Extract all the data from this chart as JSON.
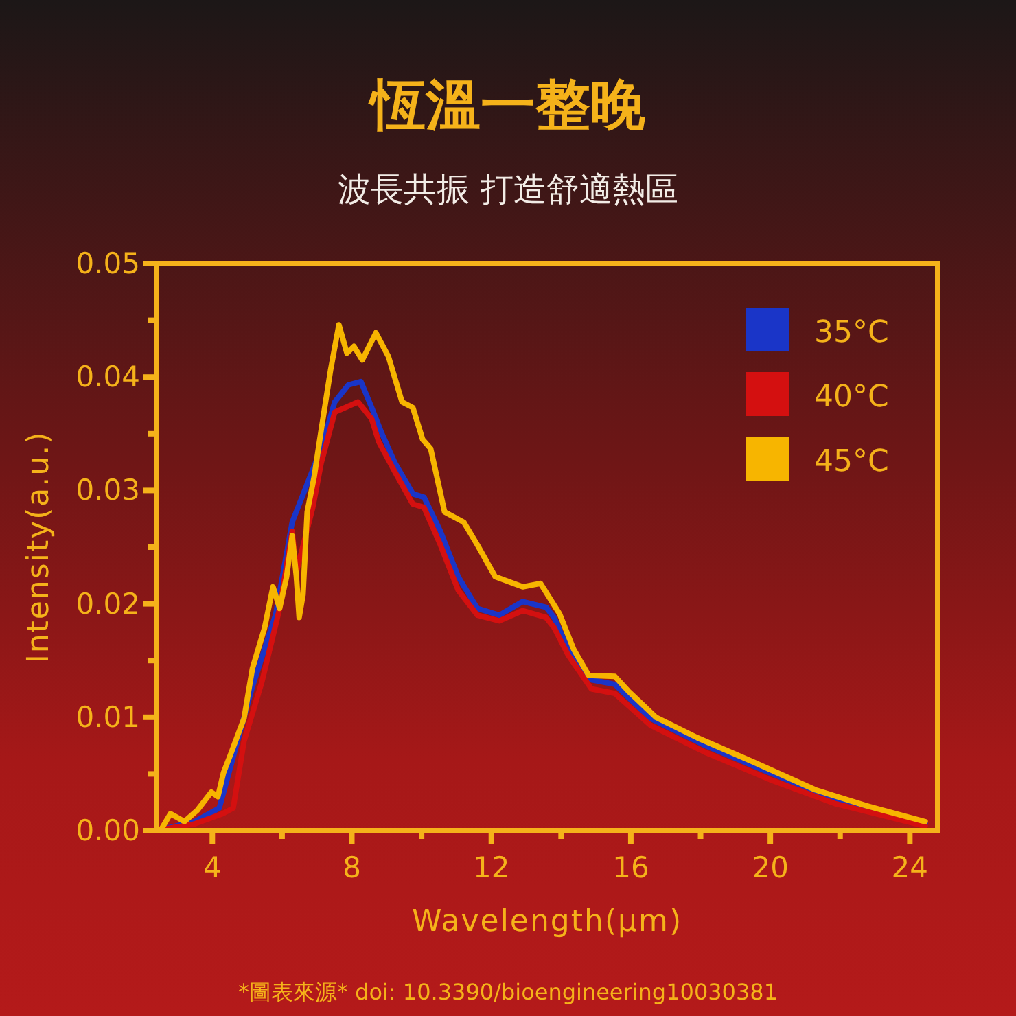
{
  "chart_data": {
    "type": "line",
    "title": "恆溫一整晚",
    "subtitle": "波長共振 打造舒適熱區",
    "xlabel": "Wavelength(µm)",
    "ylabel": "Intensity(a.u.)",
    "annotations": [
      "*圖表來源* doi: 10.3390/bioengineering10030381"
    ],
    "xlim": [
      2.4,
      24.8
    ],
    "ylim": [
      0,
      0.05
    ],
    "xticks": [
      4,
      {
        "value": 6,
        "label": null
      },
      8,
      {
        "value": 10,
        "label": null
      },
      12,
      {
        "value": 14,
        "label": null
      },
      16,
      {
        "value": 18,
        "label": null
      },
      20,
      {
        "value": 22,
        "label": null
      },
      24
    ],
    "yticks": [
      {
        "value": 0,
        "label": "0.00"
      },
      {
        "value": 0.005,
        "label": null
      },
      {
        "value": 0.01,
        "label": "0.01"
      },
      {
        "value": 0.015,
        "label": null
      },
      {
        "value": 0.02,
        "label": "0.02"
      },
      {
        "value": 0.025,
        "label": null
      },
      {
        "value": 0.03,
        "label": "0.03"
      },
      {
        "value": 0.035,
        "label": null
      },
      {
        "value": 0.04,
        "label": "0.04"
      },
      {
        "value": 0.045,
        "label": null
      },
      {
        "value": 0.05,
        "label": "0.05"
      }
    ],
    "legend": "top right",
    "series": [
      {
        "name": "35°C",
        "color": "#1a35c8",
        "x": [
          2.55,
          3.5,
          4.2,
          5.15,
          5.82,
          6.29,
          7.12,
          7.51,
          7.9,
          8.26,
          8.57,
          8.85,
          9.24,
          9.75,
          10.07,
          10.54,
          11.05,
          11.6,
          12.23,
          12.9,
          13.57,
          13.8,
          14.2,
          14.87,
          15.54,
          16.56,
          18.14,
          19.99,
          21.84,
          24.44
        ],
        "values": [
          0.0001,
          0.0008,
          0.002,
          0.0127,
          0.0191,
          0.0272,
          0.0337,
          0.0378,
          0.0393,
          0.0396,
          0.0373,
          0.0351,
          0.0324,
          0.0297,
          0.0294,
          0.0264,
          0.0224,
          0.0196,
          0.019,
          0.0202,
          0.0197,
          0.0188,
          0.016,
          0.0133,
          0.0129,
          0.0099,
          0.0075,
          0.0051,
          0.0028,
          0.0006
        ]
      },
      {
        "name": "40°C",
        "color": "#d41010",
        "x": [
          2.55,
          3.5,
          4.3,
          4.6,
          4.91,
          5.42,
          5.93,
          6.29,
          6.41,
          6.88,
          7.12,
          7.51,
          8.18,
          8.57,
          8.77,
          9.24,
          9.75,
          10.07,
          10.54,
          11.05,
          11.6,
          12.23,
          12.9,
          13.57,
          13.8,
          14.2,
          14.87,
          15.54,
          16.56,
          18.14,
          19.99,
          21.84,
          24.44
        ],
        "values": [
          0.0001,
          0.0006,
          0.0015,
          0.002,
          0.0079,
          0.0131,
          0.0196,
          0.0264,
          0.0228,
          0.0285,
          0.0324,
          0.0369,
          0.0378,
          0.0363,
          0.0343,
          0.0316,
          0.0288,
          0.0285,
          0.0252,
          0.0212,
          0.019,
          0.0185,
          0.0194,
          0.0188,
          0.0179,
          0.0155,
          0.0125,
          0.0121,
          0.0093,
          0.0069,
          0.0045,
          0.0024,
          0.0004
        ]
      },
      {
        "name": "45°C",
        "color": "#f7b500",
        "x": [
          2.55,
          2.8,
          3.2,
          3.57,
          3.97,
          4.16,
          4.32,
          4.52,
          4.91,
          5.15,
          5.5,
          5.74,
          5.93,
          6.13,
          6.29,
          6.41,
          6.49,
          6.6,
          6.72,
          6.92,
          7.12,
          7.39,
          7.63,
          7.86,
          8.06,
          8.3,
          8.69,
          9.05,
          9.44,
          9.75,
          10.03,
          10.26,
          10.66,
          11.21,
          11.6,
          12.11,
          12.9,
          13.41,
          13.96,
          14.36,
          14.79,
          15.54,
          15.93,
          16.72,
          17.9,
          19.48,
          21.29,
          22.75,
          24.44
        ],
        "values": [
          0.0002,
          0.0015,
          0.0008,
          0.0018,
          0.0034,
          0.003,
          0.0051,
          0.0067,
          0.0099,
          0.0143,
          0.0179,
          0.0215,
          0.0196,
          0.0224,
          0.026,
          0.0224,
          0.0188,
          0.0208,
          0.0281,
          0.0312,
          0.0353,
          0.0406,
          0.0446,
          0.0421,
          0.0427,
          0.0415,
          0.0439,
          0.0418,
          0.0378,
          0.0373,
          0.0345,
          0.0337,
          0.0281,
          0.0272,
          0.0252,
          0.0224,
          0.0215,
          0.0218,
          0.0191,
          0.016,
          0.0137,
          0.0136,
          0.0123,
          0.01,
          0.0082,
          0.0061,
          0.0036,
          0.0022,
          0.0008
        ]
      }
    ]
  }
}
